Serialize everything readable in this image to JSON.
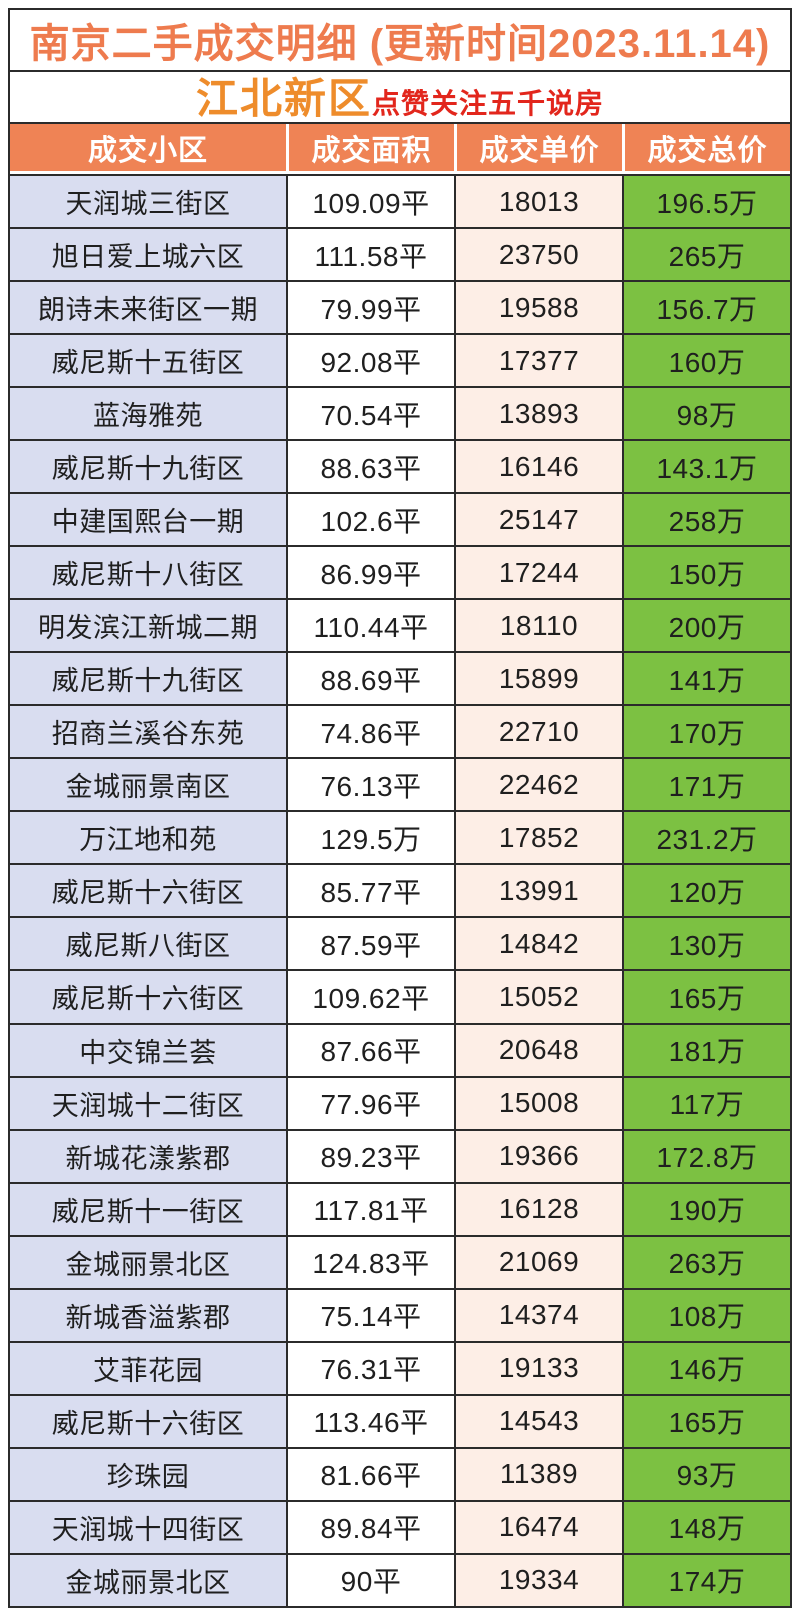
{
  "header": {
    "title": "南京二手成交明细 (更新时间2023.11.14)",
    "district": "江北新区",
    "promo": "点赞关注五千说房"
  },
  "chart_data": {
    "type": "table",
    "title": "南京二手成交明细 (更新时间2023.11.14)",
    "subtitle": "江北新区",
    "columns": [
      "成交小区",
      "成交面积",
      "成交单价",
      "成交总价"
    ],
    "rows": [
      [
        "天润城三街区",
        "109.09平",
        "18013",
        "196.5万"
      ],
      [
        "旭日爱上城六区",
        "111.58平",
        "23750",
        "265万"
      ],
      [
        "朗诗未来街区一期",
        "79.99平",
        "19588",
        "156.7万"
      ],
      [
        "威尼斯十五街区",
        "92.08平",
        "17377",
        "160万"
      ],
      [
        "蓝海雅苑",
        "70.54平",
        "13893",
        "98万"
      ],
      [
        "威尼斯十九街区",
        "88.63平",
        "16146",
        "143.1万"
      ],
      [
        "中建国熙台一期",
        "102.6平",
        "25147",
        "258万"
      ],
      [
        "威尼斯十八街区",
        "86.99平",
        "17244",
        "150万"
      ],
      [
        "明发滨江新城二期",
        "110.44平",
        "18110",
        "200万"
      ],
      [
        "威尼斯十九街区",
        "88.69平",
        "15899",
        "141万"
      ],
      [
        "招商兰溪谷东苑",
        "74.86平",
        "22710",
        "170万"
      ],
      [
        "金城丽景南区",
        "76.13平",
        "22462",
        "171万"
      ],
      [
        "万江地和苑",
        "129.5万",
        "17852",
        "231.2万"
      ],
      [
        "威尼斯十六街区",
        "85.77平",
        "13991",
        "120万"
      ],
      [
        "威尼斯八街区",
        "87.59平",
        "14842",
        "130万"
      ],
      [
        "威尼斯十六街区",
        "109.62平",
        "15052",
        "165万"
      ],
      [
        "中交锦兰荟",
        "87.66平",
        "20648",
        "181万"
      ],
      [
        "天润城十二街区",
        "77.96平",
        "15008",
        "117万"
      ],
      [
        "新城花漾紫郡",
        "89.23平",
        "19366",
        "172.8万"
      ],
      [
        "威尼斯十一街区",
        "117.81平",
        "16128",
        "190万"
      ],
      [
        "金城丽景北区",
        "124.83平",
        "21069",
        "263万"
      ],
      [
        "新城香溢紫郡",
        "75.14平",
        "14374",
        "108万"
      ],
      [
        "艾菲花园",
        "76.31平",
        "19133",
        "146万"
      ],
      [
        "威尼斯十六街区",
        "113.46平",
        "14543",
        "165万"
      ],
      [
        "珍珠园",
        "81.66平",
        "11389",
        "93万"
      ],
      [
        "天润城十四街区",
        "89.84平",
        "16474",
        "148万"
      ],
      [
        "金城丽景北区",
        "90平",
        "19334",
        "174万"
      ]
    ]
  },
  "colors": {
    "header_bg": "#EF8355",
    "title_text": "#EE7B4E",
    "district_text": "#EE8C2B",
    "promo_text": "#E2261C",
    "col_community_bg": "#D9DDF0",
    "col_area_bg": "#FFFFFF",
    "col_unit_bg": "#FDEEE6",
    "col_total_bg": "#7CC142",
    "border": "#2B2B2B"
  }
}
